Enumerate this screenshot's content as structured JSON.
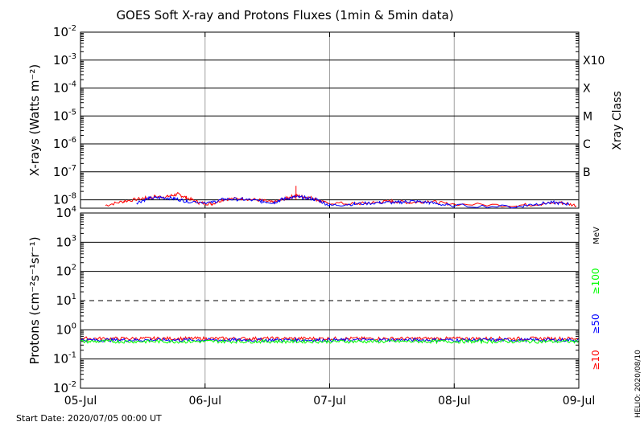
{
  "title": "GOES Soft X-ray and Protons Fluxes   (1min & 5min data)",
  "start_date_label": "Start Date: 2020/07/05 00:00 UT",
  "side_stamp": "HELIO: 2020/08/10",
  "colors": {
    "red": "#ff0000",
    "blue": "#0000ff",
    "green": "#00ff00",
    "grid": "#a0a0a0"
  },
  "chart_data": [
    {
      "type": "line",
      "panel": "xray",
      "ylabel": "X-rays (Watts m⁻²)",
      "y_scale": "log",
      "ylim_exp": [
        -8.3,
        -2
      ],
      "y_tick_exponents": [
        -8,
        -7,
        -6,
        -5,
        -4,
        -3,
        -2
      ],
      "x_ticks": [
        "05-Jul",
        "06-Jul",
        "07-Jul",
        "08-Jul",
        "09-Jul"
      ],
      "xlim_days": [
        0,
        4
      ],
      "right_axis_title": "Xray Class",
      "classes": [
        {
          "label": "B",
          "exp": -7
        },
        {
          "label": "C",
          "exp": -6
        },
        {
          "label": "M",
          "exp": -5
        },
        {
          "label": "X",
          "exp": -4
        },
        {
          "label": "X10",
          "exp": -3
        }
      ],
      "series": [
        {
          "color": "red",
          "points": [
            [
              0.2,
              -8.2
            ],
            [
              0.35,
              -8.05
            ],
            [
              0.5,
              -7.95
            ],
            [
              0.6,
              -7.9
            ],
            [
              0.7,
              -7.88
            ],
            [
              0.78,
              -7.8
            ],
            [
              0.85,
              -7.92
            ],
            [
              0.95,
              -8.1
            ],
            [
              1.05,
              -8.15
            ],
            [
              1.15,
              -7.98
            ],
            [
              1.3,
              -7.95
            ],
            [
              1.45,
              -8.02
            ],
            [
              1.55,
              -8.1
            ],
            [
              1.65,
              -7.95
            ],
            [
              1.72,
              -7.85
            ],
            [
              1.8,
              -7.9
            ],
            [
              1.88,
              -7.95
            ],
            [
              1.95,
              -8.1
            ],
            [
              2.2,
              -8.15
            ],
            [
              2.35,
              -8.1
            ],
            [
              2.5,
              -8.05
            ],
            [
              2.65,
              -8.1
            ],
            [
              2.8,
              -8.05
            ],
            [
              2.95,
              -8.15
            ],
            [
              3.5,
              -8.2
            ],
            [
              3.7,
              -8.15
            ],
            [
              3.85,
              -8.1
            ],
            [
              3.98,
              -8.2
            ]
          ]
        },
        {
          "color": "blue",
          "points": [
            [
              0.45,
              -8.1
            ],
            [
              0.55,
              -7.95
            ],
            [
              0.65,
              -7.92
            ],
            [
              0.75,
              -7.95
            ],
            [
              0.85,
              -8.05
            ],
            [
              1.05,
              -8.1
            ],
            [
              1.15,
              -7.98
            ],
            [
              1.3,
              -7.98
            ],
            [
              1.45,
              -8.05
            ],
            [
              1.55,
              -8.1
            ],
            [
              1.62,
              -7.98
            ],
            [
              1.72,
              -7.9
            ],
            [
              1.8,
              -7.92
            ],
            [
              1.9,
              -8.0
            ],
            [
              2.0,
              -8.2
            ],
            [
              2.2,
              -8.15
            ],
            [
              2.4,
              -8.1
            ],
            [
              2.55,
              -8.1
            ],
            [
              2.65,
              -8.05
            ],
            [
              2.8,
              -8.1
            ],
            [
              2.95,
              -8.2
            ],
            [
              3.5,
              -8.25
            ],
            [
              3.65,
              -8.15
            ],
            [
              3.8,
              -8.1
            ],
            [
              3.92,
              -8.15
            ]
          ]
        }
      ],
      "spike": {
        "day": 1.73,
        "exp": -7.5
      }
    },
    {
      "type": "line",
      "panel": "protons",
      "ylabel": "Protons (cm⁻²s⁻¹sr⁻¹)",
      "y_scale": "log",
      "ylim_exp": [
        -2,
        4
      ],
      "y_tick_exponents": [
        -2,
        -1,
        0,
        1,
        2,
        3,
        4
      ],
      "dashed_level_exp": 1,
      "x_ticks": [
        "05-Jul",
        "06-Jul",
        "07-Jul",
        "08-Jul",
        "09-Jul"
      ],
      "xlim_days": [
        0,
        4
      ],
      "unit_label": "MeV",
      "series": [
        {
          "name": "≥10",
          "color": "red",
          "level_exp": -0.3
        },
        {
          "name": "≥50",
          "color": "blue",
          "level_exp": -0.35
        },
        {
          "name": "≥100",
          "color": "green",
          "level_exp": -0.4
        }
      ]
    }
  ]
}
